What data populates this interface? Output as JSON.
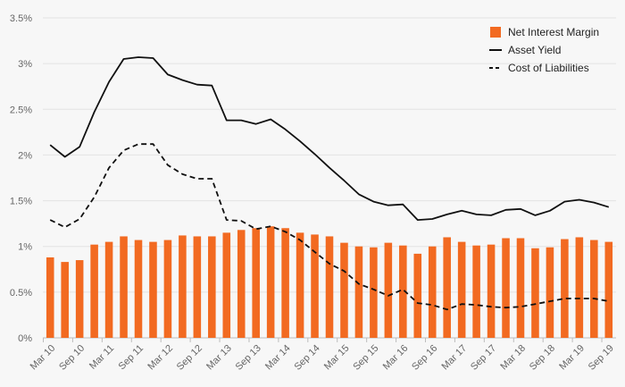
{
  "chart_data": {
    "type": "bar",
    "colors": {
      "bar": "#f26a21",
      "line": "#111111",
      "grid": "#e3e3e3",
      "axis": "#bdbdbd",
      "text": "#666666"
    },
    "ylim": [
      0,
      3.5
    ],
    "yticks": [
      "0%",
      "0.5%",
      "1%",
      "1.5%",
      "2%",
      "2.5%",
      "3%",
      "3.5%"
    ],
    "legend": {
      "placement": "top-right",
      "items": [
        {
          "label": "Net Interest Margin",
          "kind": "bar"
        },
        {
          "label": "Asset Yield",
          "kind": "solid-line"
        },
        {
          "label": "Cost of Liabilities",
          "kind": "dashed-line"
        }
      ]
    },
    "x_tick_labels": [
      "Mar 10",
      "Sep 10",
      "Mar 11",
      "Sep 11",
      "Mar 12",
      "Sep 12",
      "Mar 13",
      "Sep 13",
      "Mar 14",
      "Sep 14",
      "Mar 15",
      "Sep 15",
      "Mar 16",
      "Sep 16",
      "Mar 17",
      "Sep 17",
      "Mar 18",
      "Sep 18",
      "Mar 19",
      "Sep 19"
    ],
    "categories": [
      "Mar 10",
      "Jun 10",
      "Sep 10",
      "Dec 10",
      "Mar 11",
      "Jun 11",
      "Sep 11",
      "Dec 11",
      "Mar 12",
      "Jun 12",
      "Sep 12",
      "Dec 12",
      "Mar 13",
      "Jun 13",
      "Sep 13",
      "Dec 13",
      "Mar 14",
      "Jun 14",
      "Sep 14",
      "Dec 14",
      "Mar 15",
      "Jun 15",
      "Sep 15",
      "Dec 15",
      "Mar 16",
      "Jun 16",
      "Sep 16",
      "Dec 16",
      "Mar 17",
      "Jun 17",
      "Sep 17",
      "Dec 17",
      "Mar 18",
      "Jun 18",
      "Sep 18",
      "Dec 18",
      "Mar 19",
      "Jun 19",
      "Sep 19"
    ],
    "series": [
      {
        "name": "Net Interest Margin",
        "kind": "bar",
        "values": [
          0.88,
          0.83,
          0.85,
          1.02,
          1.05,
          1.11,
          1.07,
          1.05,
          1.07,
          1.12,
          1.11,
          1.11,
          1.15,
          1.18,
          1.2,
          1.22,
          1.2,
          1.15,
          1.13,
          1.11,
          1.04,
          1.0,
          0.99,
          1.04,
          1.01,
          0.92,
          1.0,
          1.1,
          1.05,
          1.01,
          1.02,
          1.09,
          1.09,
          0.98,
          0.99,
          1.08,
          1.1,
          1.07,
          1.05
        ]
      },
      {
        "name": "Asset Yield",
        "kind": "solid-line",
        "values": [
          2.11,
          1.98,
          2.09,
          2.47,
          2.8,
          3.05,
          3.07,
          3.06,
          2.88,
          2.82,
          2.77,
          2.76,
          2.38,
          2.38,
          2.34,
          2.39,
          2.28,
          2.15,
          2.01,
          1.86,
          1.72,
          1.57,
          1.49,
          1.45,
          1.46,
          1.29,
          1.3,
          1.35,
          1.39,
          1.35,
          1.34,
          1.4,
          1.41,
          1.34,
          1.39,
          1.49,
          1.51,
          1.48,
          1.43
        ]
      },
      {
        "name": "Cost of Liabilities",
        "kind": "dashed-line",
        "values": [
          1.29,
          1.21,
          1.3,
          1.54,
          1.86,
          2.05,
          2.12,
          2.12,
          1.89,
          1.79,
          1.74,
          1.74,
          1.29,
          1.28,
          1.19,
          1.22,
          1.16,
          1.07,
          0.94,
          0.81,
          0.73,
          0.59,
          0.53,
          0.46,
          0.53,
          0.38,
          0.36,
          0.31,
          0.37,
          0.36,
          0.34,
          0.33,
          0.34,
          0.37,
          0.4,
          0.43,
          0.43,
          0.43,
          0.4
        ]
      }
    ]
  }
}
